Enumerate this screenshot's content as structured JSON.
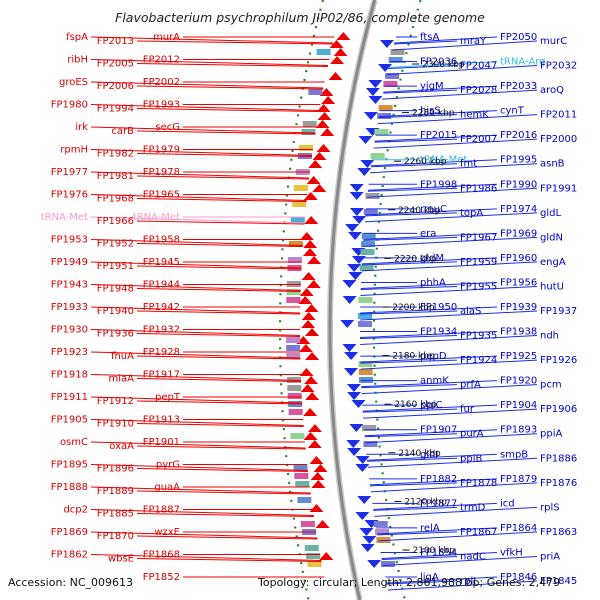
{
  "title": "Flavobacterium psychrophilum JIP02/86, complete genome",
  "accession": "Accession: NC_009613",
  "topology": "Topology: circular; Length: 2,861,988 bp; Genes: 2,479",
  "colors": {
    "forward_gene": "#ee0000",
    "reverse_gene": "#1c2fe6",
    "rna_gene": "#ff99cc",
    "trna_gene": "#33bbee",
    "backbone": "#888888",
    "gc_track": "#228b22"
  },
  "scale_labels": [
    "2300 kbp",
    "2280 kbp",
    "2260 kbp",
    "2240 kbp",
    "2220 kbp",
    "2200 kbp",
    "2180 kbp",
    "2160 kbp",
    "2140 kbp",
    "2120 kbp",
    "2100 kbp"
  ],
  "left_labels": [
    {
      "text": "murA",
      "type": "gene"
    },
    {
      "text": "FP2013",
      "type": "gene"
    },
    {
      "text": "fspA",
      "type": "gene"
    },
    {
      "text": "FP2012",
      "type": "gene"
    },
    {
      "text": "FP2005",
      "type": "gene"
    },
    {
      "text": "ribH",
      "type": "gene"
    },
    {
      "text": "FP2002",
      "type": "gene"
    },
    {
      "text": "FP2006",
      "type": "gene"
    },
    {
      "text": "groES",
      "type": "gene"
    },
    {
      "text": "FP1993",
      "type": "gene"
    },
    {
      "text": "FP1994",
      "type": "gene"
    },
    {
      "text": "FP1980",
      "type": "gene"
    },
    {
      "text": "secG",
      "type": "gene"
    },
    {
      "text": "carB",
      "type": "gene"
    },
    {
      "text": "irk",
      "type": "gene"
    },
    {
      "text": "FP1979",
      "type": "gene"
    },
    {
      "text": "FP1982",
      "type": "gene"
    },
    {
      "text": "rpmH",
      "type": "gene"
    },
    {
      "text": "FP1978",
      "type": "gene"
    },
    {
      "text": "FP1981",
      "type": "gene"
    },
    {
      "text": "FP1977",
      "type": "gene"
    },
    {
      "text": "FP1965",
      "type": "gene"
    },
    {
      "text": "FP1968",
      "type": "gene"
    },
    {
      "text": "FP1976",
      "type": "gene"
    },
    {
      "text": "tRNA-Met",
      "type": "rna"
    },
    {
      "text": "FP1966",
      "type": "gene"
    },
    {
      "text": "tRNA-Met",
      "type": "rna"
    },
    {
      "text": "FP1958",
      "type": "gene"
    },
    {
      "text": "FP1952",
      "type": "gene"
    },
    {
      "text": "FP1953",
      "type": "gene"
    },
    {
      "text": "FP1945",
      "type": "gene"
    },
    {
      "text": "FP1951",
      "type": "gene"
    },
    {
      "text": "FP1949",
      "type": "gene"
    },
    {
      "text": "FP1944",
      "type": "gene"
    },
    {
      "text": "FP1948",
      "type": "gene"
    },
    {
      "text": "FP1943",
      "type": "gene"
    },
    {
      "text": "FP1942",
      "type": "gene"
    },
    {
      "text": "FP1940",
      "type": "gene"
    },
    {
      "text": "FP1933",
      "type": "gene"
    },
    {
      "text": "FP1932",
      "type": "gene"
    },
    {
      "text": "FP1936",
      "type": "gene"
    },
    {
      "text": "FP1930",
      "type": "gene"
    },
    {
      "text": "FP1928",
      "type": "gene"
    },
    {
      "text": "fhuA",
      "type": "gene"
    },
    {
      "text": "FP1923",
      "type": "gene"
    },
    {
      "text": "FP1917",
      "type": "gene"
    },
    {
      "text": "miaA",
      "type": "gene"
    },
    {
      "text": "FP1918",
      "type": "gene"
    },
    {
      "text": "pepT",
      "type": "gene"
    },
    {
      "text": "FP1912",
      "type": "gene"
    },
    {
      "text": "FP1911",
      "type": "gene"
    },
    {
      "text": "FP1913",
      "type": "gene"
    },
    {
      "text": "FP1910",
      "type": "gene"
    },
    {
      "text": "FP1905",
      "type": "gene"
    },
    {
      "text": "FP1901",
      "type": "gene"
    },
    {
      "text": "oxaA",
      "type": "gene"
    },
    {
      "text": "osmC",
      "type": "gene"
    },
    {
      "text": "pyrG",
      "type": "gene"
    },
    {
      "text": "FP1896",
      "type": "gene"
    },
    {
      "text": "FP1895",
      "type": "gene"
    },
    {
      "text": "guaA",
      "type": "gene"
    },
    {
      "text": "FP1889",
      "type": "gene"
    },
    {
      "text": "FP1888",
      "type": "gene"
    },
    {
      "text": "FP1887",
      "type": "gene"
    },
    {
      "text": "FP1885",
      "type": "gene"
    },
    {
      "text": "dcp2",
      "type": "gene"
    },
    {
      "text": "wzxE",
      "type": "gene"
    },
    {
      "text": "FP1870",
      "type": "gene"
    },
    {
      "text": "FP1869",
      "type": "gene"
    },
    {
      "text": "FP1868",
      "type": "gene"
    },
    {
      "text": "wbsE",
      "type": "gene"
    },
    {
      "text": "FP1862",
      "type": "gene"
    },
    {
      "text": "FP1852",
      "type": "gene"
    }
  ],
  "right_labels": [
    {
      "text": "ftsA",
      "type": "gene"
    },
    {
      "text": "mraY",
      "type": "gene"
    },
    {
      "text": "FP2050",
      "type": "gene"
    },
    {
      "text": "murC",
      "type": "gene"
    },
    {
      "text": "FP2036",
      "type": "gene"
    },
    {
      "text": "FP2047",
      "type": "gene"
    },
    {
      "text": "tRNA-Arg",
      "type": "trna"
    },
    {
      "text": "FP2032",
      "type": "gene"
    },
    {
      "text": "yjgM",
      "type": "gene"
    },
    {
      "text": "FP2028",
      "type": "gene"
    },
    {
      "text": "FP2033",
      "type": "gene"
    },
    {
      "text": "aroQ",
      "type": "gene"
    },
    {
      "text": "hisS",
      "type": "gene"
    },
    {
      "text": "hemK",
      "type": "gene"
    },
    {
      "text": "cynT",
      "type": "gene"
    },
    {
      "text": "FP2011",
      "type": "gene"
    },
    {
      "text": "FP2015",
      "type": "gene"
    },
    {
      "text": "FP2007",
      "type": "gene"
    },
    {
      "text": "FP2016",
      "type": "gene"
    },
    {
      "text": "FP2000",
      "type": "gene"
    },
    {
      "text": "tRNA-Met",
      "type": "trna"
    },
    {
      "text": "fmt",
      "type": "gene"
    },
    {
      "text": "FP1995",
      "type": "gene"
    },
    {
      "text": "asnB",
      "type": "gene"
    },
    {
      "text": "FP1998",
      "type": "gene"
    },
    {
      "text": "FP1986",
      "type": "gene"
    },
    {
      "text": "FP1990",
      "type": "gene"
    },
    {
      "text": "FP1991",
      "type": "gene"
    },
    {
      "text": "rmuC",
      "type": "gene"
    },
    {
      "text": "topA",
      "type": "gene"
    },
    {
      "text": "FP1974",
      "type": "gene"
    },
    {
      "text": "gldL",
      "type": "gene"
    },
    {
      "text": "era",
      "type": "gene"
    },
    {
      "text": "FP1967",
      "type": "gene"
    },
    {
      "text": "FP1969",
      "type": "gene"
    },
    {
      "text": "gldN",
      "type": "gene"
    },
    {
      "text": "gldM",
      "type": "gene"
    },
    {
      "text": "FP1959",
      "type": "gene"
    },
    {
      "text": "FP1960",
      "type": "gene"
    },
    {
      "text": "engA",
      "type": "gene"
    },
    {
      "text": "phhA",
      "type": "gene"
    },
    {
      "text": "FP1955",
      "type": "gene"
    },
    {
      "text": "FP1956",
      "type": "gene"
    },
    {
      "text": "hutU",
      "type": "gene"
    },
    {
      "text": "FP1950",
      "type": "gene"
    },
    {
      "text": "alaS",
      "type": "gene"
    },
    {
      "text": "FP1939",
      "type": "gene"
    },
    {
      "text": "FP1937",
      "type": "gene"
    },
    {
      "text": "FP1934",
      "type": "gene"
    },
    {
      "text": "FP1935",
      "type": "gene"
    },
    {
      "text": "FP1938",
      "type": "gene"
    },
    {
      "text": "ndh",
      "type": "gene"
    },
    {
      "text": "pepD",
      "type": "gene"
    },
    {
      "text": "FP1924",
      "type": "gene"
    },
    {
      "text": "FP1925",
      "type": "gene"
    },
    {
      "text": "FP1926",
      "type": "gene"
    },
    {
      "text": "anmK",
      "type": "gene"
    },
    {
      "text": "prfA",
      "type": "gene"
    },
    {
      "text": "FP1920",
      "type": "gene"
    },
    {
      "text": "pcm",
      "type": "gene"
    },
    {
      "text": "ppiC",
      "type": "gene"
    },
    {
      "text": "fur",
      "type": "gene"
    },
    {
      "text": "FP1904",
      "type": "gene"
    },
    {
      "text": "FP1906",
      "type": "gene"
    },
    {
      "text": "FP1907",
      "type": "gene"
    },
    {
      "text": "purA",
      "type": "gene"
    },
    {
      "text": "FP1893",
      "type": "gene"
    },
    {
      "text": "ppiA",
      "type": "gene"
    },
    {
      "text": "gldI",
      "type": "gene"
    },
    {
      "text": "ppiB",
      "type": "gene"
    },
    {
      "text": "smpB",
      "type": "gene"
    },
    {
      "text": "FP1886",
      "type": "gene"
    },
    {
      "text": "FP1882",
      "type": "gene"
    },
    {
      "text": "FP1878",
      "type": "gene"
    },
    {
      "text": "FP1879",
      "type": "gene"
    },
    {
      "text": "FP1876",
      "type": "gene"
    },
    {
      "text": "FP1877",
      "type": "gene"
    },
    {
      "text": "trmD",
      "type": "gene"
    },
    {
      "text": "icd",
      "type": "gene"
    },
    {
      "text": "rplS",
      "type": "gene"
    },
    {
      "text": "relA",
      "type": "gene"
    },
    {
      "text": "FP1867",
      "type": "gene"
    },
    {
      "text": "FP1864",
      "type": "gene"
    },
    {
      "text": "FP1863",
      "type": "gene"
    },
    {
      "text": "FP1854",
      "type": "gene"
    },
    {
      "text": "nadC",
      "type": "gene"
    },
    {
      "text": "vfkH",
      "type": "gene"
    },
    {
      "text": "priA",
      "type": "gene"
    },
    {
      "text": "ligA",
      "type": "gene"
    },
    {
      "text": "rplI",
      "type": "gene"
    },
    {
      "text": "FP1846",
      "type": "gene"
    },
    {
      "text": "FP1845",
      "type": "gene"
    }
  ]
}
